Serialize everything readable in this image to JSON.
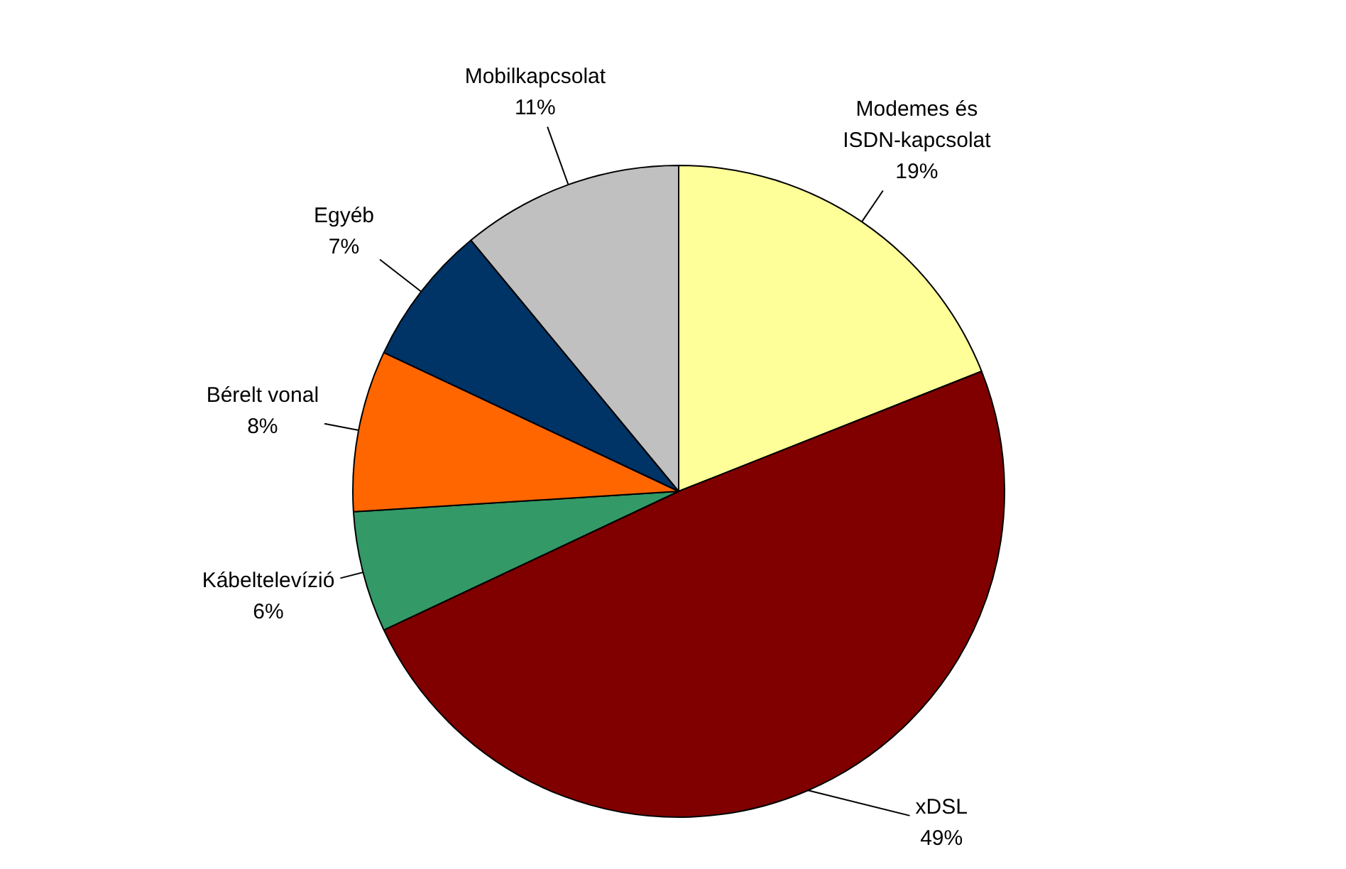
{
  "chart_data": {
    "type": "pie",
    "categories": [
      "Modemes és ISDN-kapcsolat",
      "xDSL",
      "Kábeltelevízió",
      "Bérelt vonal",
      "Egyéb",
      "Mobilkapcsolat"
    ],
    "values": [
      19,
      49,
      6,
      8,
      7,
      11
    ],
    "value_labels": [
      "19%",
      "49%",
      "6%",
      "8%",
      "7%",
      "11%"
    ],
    "colors": [
      "#ffff99",
      "#800000",
      "#339966",
      "#ff6600",
      "#003366",
      "#c0c0c0"
    ],
    "legend": false
  }
}
